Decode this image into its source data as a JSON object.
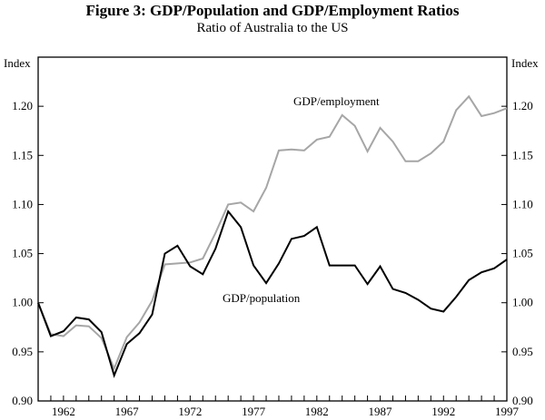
{
  "chart_data": {
    "type": "line",
    "title": "Figure 3: GDP/Population and GDP/Employment Ratios",
    "subtitle": "Ratio of Australia to the US",
    "ylabel_left": "Index",
    "ylabel_right": "Index",
    "xlim": [
      1960,
      1997
    ],
    "ylim": [
      0.9,
      1.25
    ],
    "yticks": [
      "0.90",
      "0.95",
      "1.00",
      "1.05",
      "1.10",
      "1.15",
      "1.20"
    ],
    "xticks": [
      "1962",
      "1967",
      "1972",
      "1977",
      "1982",
      "1987",
      "1992",
      "1997"
    ],
    "grid": false,
    "x": [
      1960,
      1961,
      1962,
      1963,
      1964,
      1965,
      1966,
      1967,
      1968,
      1969,
      1970,
      1971,
      1972,
      1973,
      1974,
      1975,
      1976,
      1977,
      1978,
      1979,
      1980,
      1981,
      1982,
      1983,
      1984,
      1985,
      1986,
      1987,
      1988,
      1989,
      1990,
      1991,
      1992,
      1993,
      1994,
      1995,
      1996,
      1997
    ],
    "series": [
      {
        "name": "GDP/employment",
        "color": "#a6a6a6",
        "values": [
          1.0,
          0.968,
          0.966,
          0.977,
          0.976,
          0.964,
          0.933,
          0.965,
          0.98,
          1.002,
          1.039,
          1.04,
          1.041,
          1.045,
          1.071,
          1.1,
          1.102,
          1.093,
          1.117,
          1.155,
          1.156,
          1.155,
          1.166,
          1.169,
          1.191,
          1.18,
          1.154,
          1.178,
          1.164,
          1.144,
          1.144,
          1.152,
          1.164,
          1.196,
          1.21,
          1.19,
          1.193,
          1.198
        ]
      },
      {
        "name": "GDP/population",
        "color": "#000000",
        "values": [
          1.0,
          0.966,
          0.971,
          0.985,
          0.983,
          0.97,
          0.926,
          0.958,
          0.969,
          0.988,
          1.05,
          1.058,
          1.037,
          1.029,
          1.055,
          1.093,
          1.077,
          1.038,
          1.02,
          1.04,
          1.065,
          1.068,
          1.077,
          1.038,
          1.038,
          1.038,
          1.019,
          1.037,
          1.014,
          1.01,
          1.003,
          0.994,
          0.991,
          1.006,
          1.023,
          1.031,
          1.035,
          1.044
        ]
      }
    ]
  }
}
